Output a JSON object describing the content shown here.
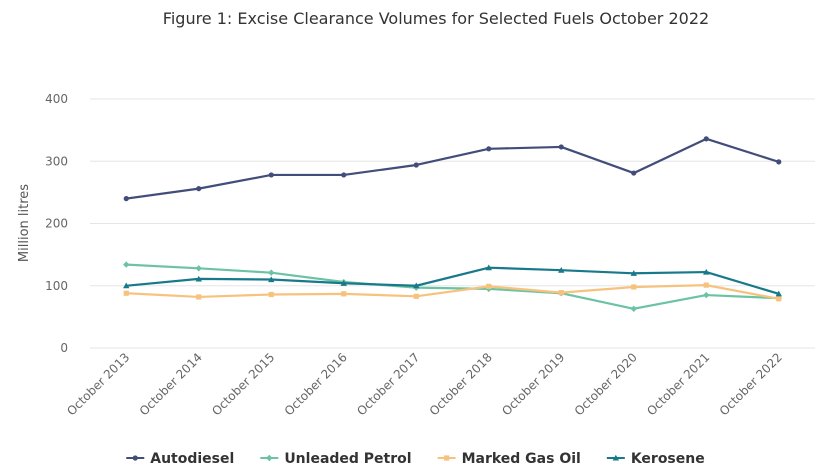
{
  "chart_data": {
    "type": "line",
    "title": "Figure 1: Excise Clearance Volumes for Selected Fuels October 2022",
    "xlabel": "",
    "ylabel": "Million litres",
    "categories": [
      "October 2013",
      "October 2014",
      "October 2015",
      "October 2016",
      "October 2017",
      "October 2018",
      "October 2019",
      "October 2020",
      "October 2021",
      "October 2022"
    ],
    "ylim": [
      0,
      400
    ],
    "yticks": [
      0,
      100,
      200,
      300,
      400
    ],
    "grid": true,
    "legend_position": "bottom",
    "series": [
      {
        "name": "Autodiesel",
        "color": "#434d7a",
        "marker": "circle",
        "values": [
          240,
          256,
          278,
          278,
          294,
          320,
          323,
          281,
          336,
          299
        ]
      },
      {
        "name": "Unleaded Petrol",
        "color": "#6cc3a4",
        "marker": "diamond",
        "values": [
          134,
          128,
          121,
          106,
          97,
          95,
          88,
          63,
          85,
          80
        ]
      },
      {
        "name": "Marked Gas Oil",
        "color": "#f7c27d",
        "marker": "square",
        "values": [
          88,
          82,
          86,
          87,
          83,
          99,
          89,
          98,
          101,
          79
        ]
      },
      {
        "name": "Kerosene",
        "color": "#17798a",
        "marker": "triangle",
        "values": [
          100,
          111,
          110,
          104,
          100,
          129,
          125,
          120,
          122,
          87
        ]
      }
    ]
  }
}
